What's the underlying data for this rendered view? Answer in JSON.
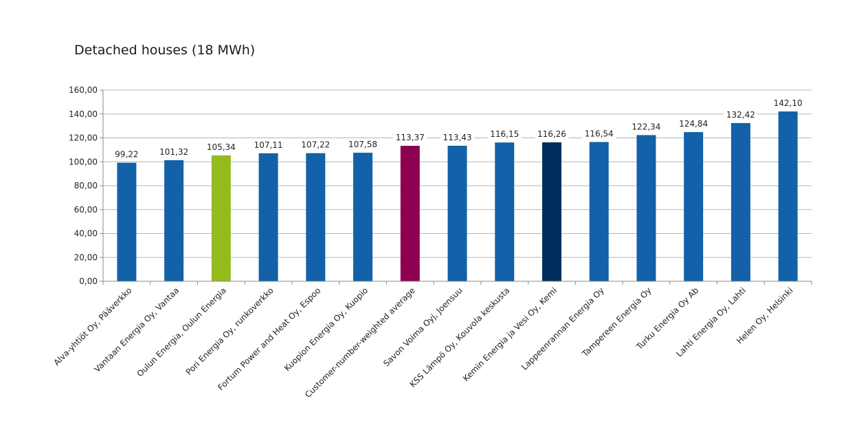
{
  "chart_data": {
    "type": "bar",
    "title": "Detached houses (18 MWh)",
    "xlabel": "",
    "ylabel": "",
    "ylim": [
      0,
      160
    ],
    "ytick_step": 20,
    "yticks": [
      "0,00",
      "20,00",
      "40,00",
      "60,00",
      "80,00",
      "100,00",
      "120,00",
      "140,00",
      "160,00"
    ],
    "grid": true,
    "legend": "none",
    "categories": [
      "Alva-yhtiöt Oy, Pääverkko",
      "Vantaan Energia Oy, Vantaa",
      "Oulun Energia, Oulun Energia",
      "Pori Energia Oy, runkoverkko",
      "Fortum Power and Heat Oy, Espoo",
      "Kuopion Energia Oy, Kuopio",
      "Customer-number-weighted average",
      "Savon Voima Oyj, Joensuu",
      "KSS Lämpö Oy, Kouvola keskusta",
      "Kemin Energia ja Vesi Oy, Kemi",
      "Lappeenrannan Energia Oy",
      "Tampereen Energia Oy",
      "Turku Energia Oy Ab",
      "Lahti Energia Oy, Lahti",
      "Helen Oy, Helsinki"
    ],
    "values": [
      99.22,
      101.32,
      105.34,
      107.11,
      107.22,
      107.58,
      113.37,
      113.43,
      116.15,
      116.26,
      116.54,
      122.34,
      124.84,
      132.42,
      142.1
    ],
    "value_labels": [
      "99,22",
      "101,32",
      "105,34",
      "107,11",
      "107,22",
      "107,58",
      "113,37",
      "113,43",
      "116,15",
      "116,26",
      "116,54",
      "122,34",
      "124,84",
      "132,42",
      "142,10"
    ],
    "colors": {
      "default": "#1361a8",
      "highlight_green": "#93bb1e",
      "highlight_magenta": "#8c004f",
      "highlight_navy": "#002d5c",
      "grid": "#b5b5b5",
      "axis": "#8a8a8a"
    },
    "bar_colors": [
      "#1361a8",
      "#1361a8",
      "#93bb1e",
      "#1361a8",
      "#1361a8",
      "#1361a8",
      "#8c004f",
      "#1361a8",
      "#1361a8",
      "#002d5c",
      "#1361a8",
      "#1361a8",
      "#1361a8",
      "#1361a8",
      "#1361a8"
    ]
  }
}
